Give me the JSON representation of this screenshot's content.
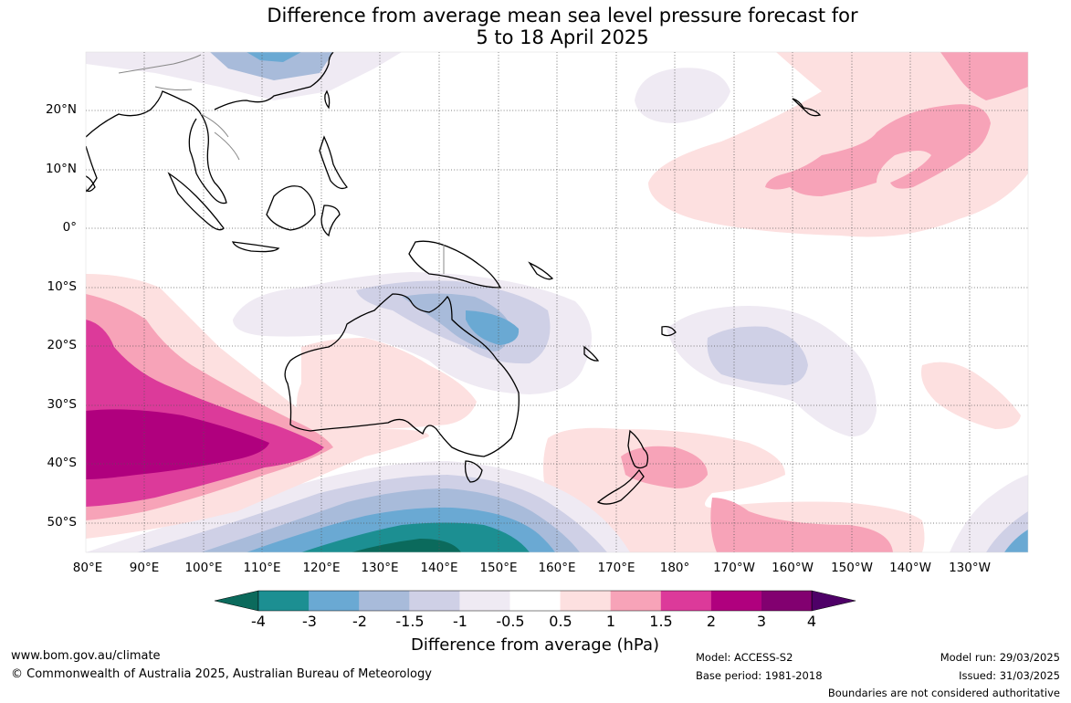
{
  "title_line1": "Difference from average mean sea level pressure forecast for",
  "title_line2": "5 to 18 April 2025",
  "lat_labels": [
    "20°N",
    "10°N",
    "0°",
    "10°S",
    "20°S",
    "30°S",
    "40°S",
    "50°S"
  ],
  "lon_labels": [
    "80°E",
    "90°E",
    "100°E",
    "110°E",
    "120°E",
    "130°E",
    "140°E",
    "150°E",
    "160°E",
    "170°E",
    "180°",
    "170°W",
    "160°W",
    "150°W",
    "140°W",
    "130°W"
  ],
  "colorbar": {
    "ticks": [
      "-4",
      "-3",
      "-2",
      "-1.5",
      "-1",
      "-0.5",
      "0.5",
      "1",
      "1.5",
      "2",
      "3",
      "4"
    ],
    "colors": [
      "#0b6a5c",
      "#1c8f92",
      "#6aa9d3",
      "#a8bbda",
      "#cfd0e6",
      "#efeaf3",
      "#ffffff",
      "#fde0e0",
      "#f7a3b8",
      "#dc3a9a",
      "#b0007e",
      "#820070",
      "#4e0067"
    ],
    "label": "Difference from average (hPa)"
  },
  "footer": {
    "url": "www.bom.gov.au/climate",
    "copyright": "© Commonwealth of Australia 2025, Australian Bureau of Meteorology",
    "model": "Model: ACCESS-S2",
    "base_period": "Base period: 1981-2018",
    "model_run": "Model run: 29/03/2025",
    "issued": "Issued: 31/03/2025",
    "disclaimer": "Boundaries are not considered authoritative"
  }
}
